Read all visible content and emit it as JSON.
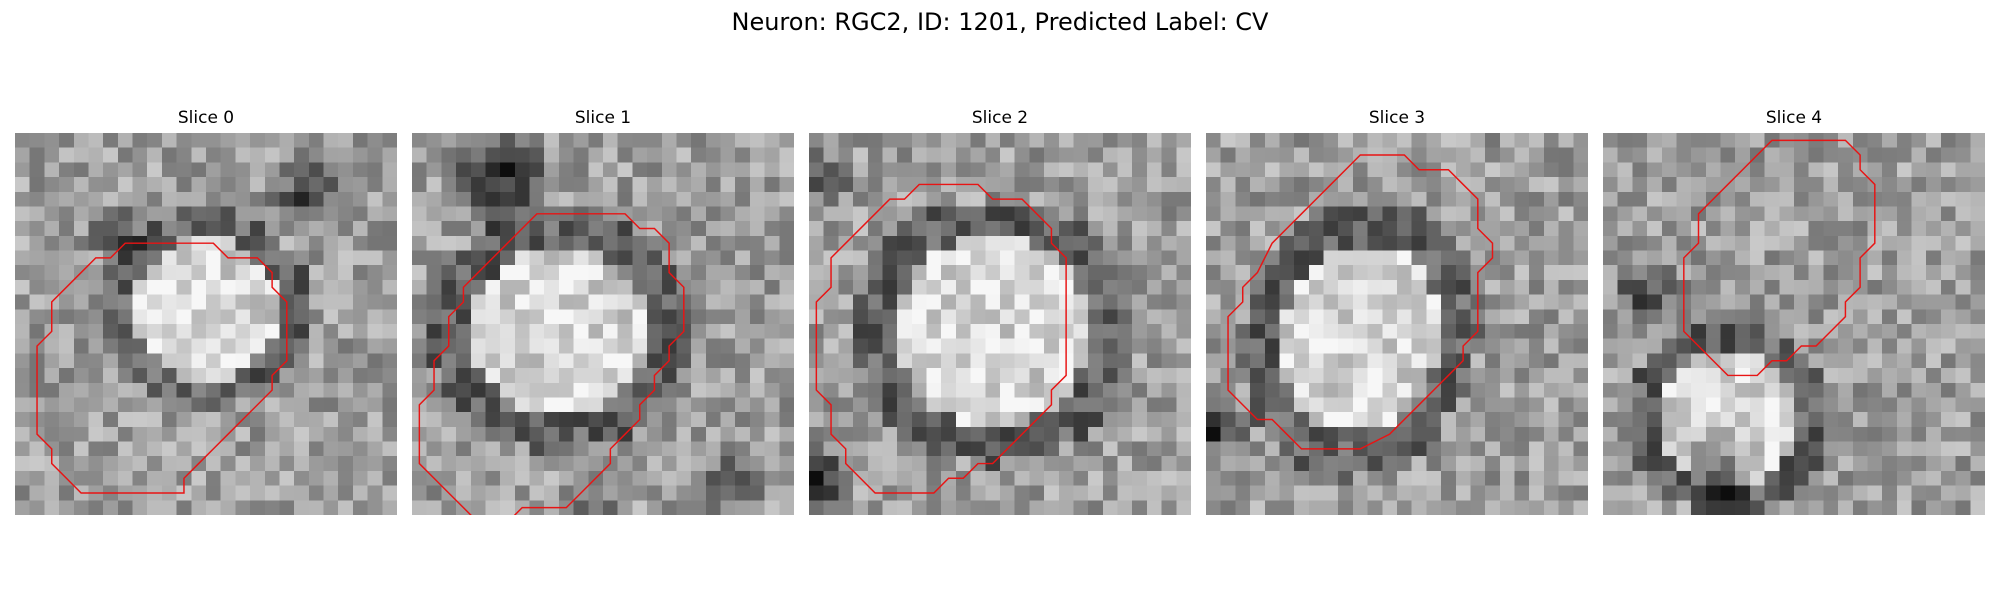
{
  "title": "Neuron: RGC2, ID: 1201, Predicted Label: CV",
  "colors": {
    "outline": "#e81414",
    "background": "#ffffff"
  },
  "panels": [
    {
      "label": "Slice 0",
      "mask_shape": "roundish cell body centered slightly up-right; dark ring around bright interior",
      "outline": [
        [
          10.5,
          7.5
        ],
        [
          13.5,
          7.5
        ],
        [
          14.5,
          8.5
        ],
        [
          16.5,
          8.5
        ],
        [
          17.5,
          9.5
        ],
        [
          17.5,
          10.5
        ],
        [
          18.5,
          11.5
        ],
        [
          18.5,
          15.5
        ],
        [
          17.5,
          16.5
        ],
        [
          17.5,
          17.5
        ],
        [
          14.5,
          20.5
        ],
        [
          13.5,
          21.5
        ],
        [
          12.5,
          22.5
        ],
        [
          11.5,
          23.5
        ],
        [
          11.5,
          24.5
        ],
        [
          4.5,
          24.5
        ],
        [
          3.5,
          23.5
        ],
        [
          2.5,
          22.5
        ],
        [
          2.5,
          21.5
        ],
        [
          1.5,
          20.5
        ],
        [
          1.5,
          14.5
        ],
        [
          2.5,
          13.5
        ],
        [
          2.5,
          11.5
        ],
        [
          4.5,
          9.5
        ],
        [
          5.5,
          8.5
        ],
        [
          6.5,
          8.5
        ],
        [
          7.5,
          7.5
        ]
      ]
    },
    {
      "label": "Slice 1",
      "mask_shape": "large oval cell body with dark rim",
      "outline": [
        [
          8.5,
          5.5
        ],
        [
          14.5,
          5.5
        ],
        [
          15.5,
          6.5
        ],
        [
          16.5,
          6.5
        ],
        [
          17.5,
          7.5
        ],
        [
          17.5,
          9.5
        ],
        [
          18.5,
          10.5
        ],
        [
          18.5,
          13.5
        ],
        [
          17.5,
          14.5
        ],
        [
          17.5,
          15.5
        ],
        [
          16.5,
          16.5
        ],
        [
          16.5,
          17.5
        ],
        [
          15.5,
          18.5
        ],
        [
          15.5,
          19.5
        ],
        [
          14.5,
          20.5
        ],
        [
          13.5,
          21.5
        ],
        [
          13.5,
          22.5
        ],
        [
          12.5,
          23.5
        ],
        [
          11.5,
          24.5
        ],
        [
          10.5,
          25.5
        ],
        [
          7.5,
          25.5
        ],
        [
          6.5,
          26.5
        ],
        [
          4.5,
          26.5
        ],
        [
          3.5,
          25.5
        ],
        [
          2.5,
          24.5
        ],
        [
          1.5,
          23.5
        ],
        [
          0.5,
          22.5
        ],
        [
          0.5,
          18.5
        ],
        [
          1.5,
          17.5
        ],
        [
          1.5,
          15.5
        ],
        [
          2.5,
          14.5
        ],
        [
          2.5,
          12.5
        ],
        [
          3.5,
          11.5
        ],
        [
          3.5,
          10.5
        ],
        [
          4.5,
          9.5
        ],
        [
          5.5,
          8.5
        ],
        [
          6.5,
          7.5
        ],
        [
          7.5,
          6.5
        ]
      ]
    },
    {
      "label": "Slice 2",
      "mask_shape": "round cell body with thick dark ring, centered",
      "outline": [
        [
          9.5,
          3.5
        ],
        [
          11.5,
          3.5
        ],
        [
          12.5,
          4.5
        ],
        [
          14.5,
          4.5
        ],
        [
          16.5,
          6.5
        ],
        [
          16.5,
          7.5
        ],
        [
          17.5,
          8.5
        ],
        [
          17.5,
          16.5
        ],
        [
          16.5,
          17.5
        ],
        [
          16.5,
          18.5
        ],
        [
          13.5,
          21.5
        ],
        [
          12.5,
          22.5
        ],
        [
          11.5,
          22.5
        ],
        [
          10.5,
          23.5
        ],
        [
          9.5,
          23.5
        ],
        [
          8.5,
          24.5
        ],
        [
          4.5,
          24.5
        ],
        [
          3.5,
          23.5
        ],
        [
          2.5,
          22.5
        ],
        [
          2.5,
          21.5
        ],
        [
          1.5,
          20.5
        ],
        [
          1.5,
          18.5
        ],
        [
          0.5,
          17.5
        ],
        [
          0.5,
          11.5
        ],
        [
          1.5,
          10.5
        ],
        [
          1.5,
          8.5
        ],
        [
          2.5,
          7.5
        ],
        [
          5.5,
          4.5
        ],
        [
          6.5,
          4.5
        ],
        [
          7.5,
          3.5
        ]
      ]
    },
    {
      "label": "Slice 3",
      "mask_shape": "tilted oval cell body toward upper right",
      "outline": [
        [
          10.5,
          1.5
        ],
        [
          13.5,
          1.5
        ],
        [
          14.5,
          2.5
        ],
        [
          16.5,
          2.5
        ],
        [
          17.5,
          3.5
        ],
        [
          18.5,
          4.5
        ],
        [
          18.5,
          6.5
        ],
        [
          19.5,
          7.5
        ],
        [
          19.5,
          8.5
        ],
        [
          18.5,
          9.5
        ],
        [
          18.5,
          13.5
        ],
        [
          17.5,
          14.5
        ],
        [
          17.5,
          15.5
        ],
        [
          16.5,
          16.5
        ],
        [
          15.5,
          17.5
        ],
        [
          14.5,
          18.5
        ],
        [
          13.5,
          19.5
        ],
        [
          12.5,
          20.5
        ],
        [
          10.5,
          21.5
        ],
        [
          6.5,
          21.5
        ],
        [
          5.5,
          20.5
        ],
        [
          4.5,
          19.5
        ],
        [
          3.5,
          19.5
        ],
        [
          1.5,
          17.5
        ],
        [
          1.5,
          12.5
        ],
        [
          2.5,
          11.5
        ],
        [
          2.5,
          10.5
        ],
        [
          3.5,
          9.5
        ],
        [
          4.5,
          7.5
        ],
        [
          5.5,
          6.5
        ],
        [
          6.5,
          5.5
        ],
        [
          7.5,
          4.5
        ],
        [
          8.5,
          3.5
        ],
        [
          9.5,
          2.5
        ]
      ]
    },
    {
      "label": "Slice 4",
      "mask_shape": "cell body offset to upper right, dark band crossing middle-left",
      "outline": [
        [
          11.5,
          0.5
        ],
        [
          16.5,
          0.5
        ],
        [
          17.5,
          1.5
        ],
        [
          17.5,
          2.5
        ],
        [
          18.5,
          3.5
        ],
        [
          18.5,
          7.5
        ],
        [
          17.5,
          8.5
        ],
        [
          17.5,
          10.5
        ],
        [
          16.5,
          11.5
        ],
        [
          16.5,
          12.5
        ],
        [
          15.5,
          13.5
        ],
        [
          14.5,
          14.5
        ],
        [
          13.5,
          14.5
        ],
        [
          12.5,
          15.5
        ],
        [
          11.5,
          15.5
        ],
        [
          10.5,
          16.5
        ],
        [
          8.5,
          16.5
        ],
        [
          7.5,
          15.5
        ],
        [
          6.5,
          14.5
        ],
        [
          5.5,
          13.5
        ],
        [
          5.5,
          8.5
        ],
        [
          6.5,
          7.5
        ],
        [
          6.5,
          5.5
        ],
        [
          7.5,
          4.5
        ],
        [
          8.5,
          3.5
        ],
        [
          9.5,
          2.5
        ],
        [
          10.5,
          1.5
        ]
      ]
    }
  ]
}
